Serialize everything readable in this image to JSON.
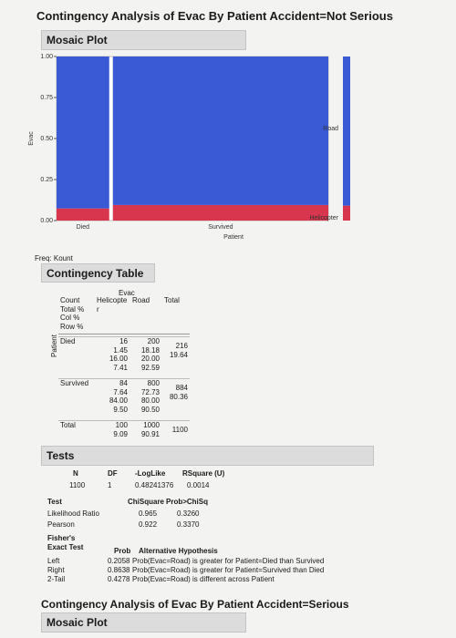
{
  "report": {
    "title": "Contingency Analysis of Evac By Patient Accident=Not Serious",
    "next_title": "Contingency Analysis of Evac By Patient Accident=Serious"
  },
  "mosaic": {
    "header": "Mosaic Plot",
    "y_axis_label": "Evac",
    "x_axis_label": "Patient",
    "categories": [
      "Died",
      "Survived"
    ],
    "widths": [
      0.1964,
      0.8036
    ],
    "series": [
      {
        "name": "Helicopter",
        "color": "#d8364f",
        "values": [
          0.0741,
          0.095
        ],
        "overall": 0.0909
      },
      {
        "name": "Road",
        "color": "#3a59d4",
        "values": [
          0.9259,
          0.905
        ],
        "overall": 0.9091
      }
    ],
    "ylim": [
      0,
      1
    ],
    "yticks": [
      {
        "value": 0,
        "label": "0.00"
      },
      {
        "value": 0.25,
        "label": "0.25"
      },
      {
        "value": 0.5,
        "label": "0.50"
      },
      {
        "value": 0.75,
        "label": "0.75"
      },
      {
        "value": 1,
        "label": "1.00"
      }
    ]
  },
  "freq": "Freq: Kount",
  "contingency_table": {
    "header": "Contingency Table",
    "column_var": "Evac",
    "row_var": "Patient",
    "stub": [
      "Count",
      "Total %",
      "Col %",
      "Row %"
    ],
    "columns": [
      "Helicopter",
      "Road",
      "Total"
    ],
    "rows": [
      {
        "label": "Died",
        "cells": [
          [
            "16",
            "1.45",
            "16.00",
            "7.41"
          ],
          [
            "200",
            "18.18",
            "20.00",
            "92.59"
          ],
          [
            "216",
            "19.64"
          ]
        ]
      },
      {
        "label": "Survived",
        "cells": [
          [
            "84",
            "7.64",
            "84.00",
            "9.50"
          ],
          [
            "800",
            "72.73",
            "80.00",
            "90.50"
          ],
          [
            "884",
            "80.36"
          ]
        ]
      },
      {
        "label": "Total",
        "cells": [
          [
            "100",
            "9.09"
          ],
          [
            "1000",
            "90.91"
          ],
          [
            "1100"
          ]
        ]
      }
    ]
  },
  "tests": {
    "header": "Tests",
    "summary": {
      "headers": [
        "N",
        "DF",
        "-LogLike",
        "RSquare (U)"
      ],
      "values": [
        "1100",
        "1",
        "0.48241376",
        "0.0014"
      ]
    },
    "chi": {
      "headers": [
        "Test",
        "ChiSquare",
        "Prob>ChiSq"
      ],
      "rows": [
        [
          "Likelihood Ratio",
          "0.965",
          "0.3260"
        ],
        [
          "Pearson",
          "0.922",
          "0.3370"
        ]
      ]
    },
    "fisher": {
      "title": [
        "Fisher's",
        "Exact Test"
      ],
      "headers": [
        "Prob",
        "Alternative Hypothesis"
      ],
      "rows": [
        [
          "Left",
          "0.2058",
          "Prob(Evac=Road) is greater for Patient=Died than Survived"
        ],
        [
          "Right",
          "0.8638",
          "Prob(Evac=Road) is greater for Patient=Survived than Died"
        ],
        [
          "2-Tail",
          "0.4278",
          "Prob(Evac=Road) is different across Patient"
        ]
      ]
    }
  }
}
